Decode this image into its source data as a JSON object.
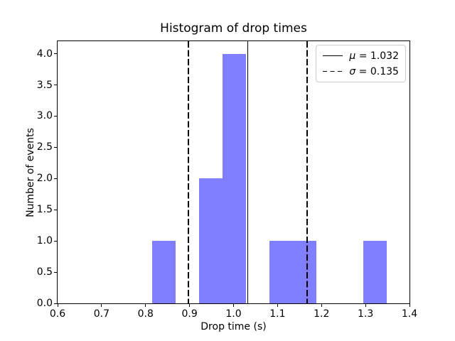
{
  "chart_data": {
    "type": "bar",
    "title": "Histogram of drop times",
    "xlabel": "Drop time (s)",
    "ylabel": "Number of events",
    "xlim": [
      0.6,
      1.4
    ],
    "ylim": [
      0,
      4.2
    ],
    "xtick_labels": [
      "0.6",
      "0.7",
      "0.8",
      "0.9",
      "1.0",
      "1.1",
      "1.2",
      "1.3",
      "1.4"
    ],
    "ytick_labels": [
      "0.0",
      "0.5",
      "1.0",
      "1.5",
      "2.0",
      "2.5",
      "3.0",
      "3.5",
      "4.0"
    ],
    "bin_edges": [
      0.815,
      0.868,
      0.921,
      0.975,
      1.028,
      1.081,
      1.135,
      1.188,
      1.241,
      1.295,
      1.348
    ],
    "counts": [
      1,
      0,
      2,
      4,
      0,
      1,
      1,
      0,
      0,
      1
    ],
    "bar_color": "#7f7fff",
    "line_color": "#000000",
    "grid": false,
    "mu": 1.032,
    "sigma": 0.135,
    "vlines": [
      {
        "x": 1.032,
        "style": "solid",
        "name": "mean-line"
      },
      {
        "x": 0.897,
        "style": "dashed",
        "name": "sigma-lower-line"
      },
      {
        "x": 1.167,
        "style": "dashed",
        "name": "sigma-upper-line"
      }
    ],
    "legend": {
      "position": "upper right",
      "items": [
        {
          "line_style": "solid",
          "symbol": "μ",
          "suffix": " = 1.032"
        },
        {
          "line_style": "dashed",
          "symbol": "σ",
          "suffix": " = 0.135"
        }
      ]
    }
  }
}
